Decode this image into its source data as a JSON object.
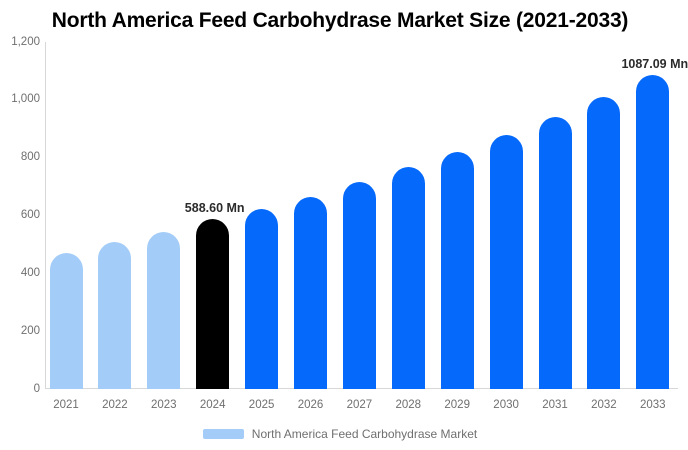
{
  "chart_data": {
    "type": "bar",
    "title": "North America Feed Carbohydrase Market Size (2021-2033)",
    "categories": [
      "2021",
      "2022",
      "2023",
      "2024",
      "2025",
      "2026",
      "2027",
      "2028",
      "2029",
      "2030",
      "2031",
      "2032",
      "2033"
    ],
    "values": [
      471,
      508,
      544,
      588.6,
      623,
      665,
      717,
      769,
      821,
      878,
      942,
      1011,
      1087.09
    ],
    "bar_styles": [
      "historical",
      "historical",
      "historical",
      "highlight",
      "forecast",
      "forecast",
      "forecast",
      "forecast",
      "forecast",
      "forecast",
      "forecast",
      "forecast",
      "forecast"
    ],
    "point_labels": [
      {
        "category": "2024",
        "text": "588.60 Mn"
      },
      {
        "category": "2033",
        "text": "1087.09 Mn"
      }
    ],
    "xlabel": "",
    "ylabel": "",
    "ylim": [
      0,
      1200
    ],
    "yticks": [
      {
        "value": 0,
        "label": "0"
      },
      {
        "value": 200,
        "label": "200"
      },
      {
        "value": 400,
        "label": "400"
      },
      {
        "value": 600,
        "label": "600"
      },
      {
        "value": 800,
        "label": "800"
      },
      {
        "value": 1000,
        "label": "1,000"
      },
      {
        "value": 1200,
        "label": "1,200"
      }
    ],
    "grid": false,
    "legend": {
      "position": "bottom",
      "entries": [
        {
          "label": "North America Feed Carbohydrase Market",
          "swatch_color": "#a3cdf8"
        }
      ]
    },
    "palette": {
      "historical": "#a3cdf8",
      "highlight": "#000000",
      "forecast": "#0569fb"
    },
    "colors": {
      "background": "#ffffff",
      "axis_line": "#d8d8d8",
      "tick_text": "#6f6f6f",
      "point_label_text": "#2b2b2b",
      "title_text": "#000000"
    }
  }
}
